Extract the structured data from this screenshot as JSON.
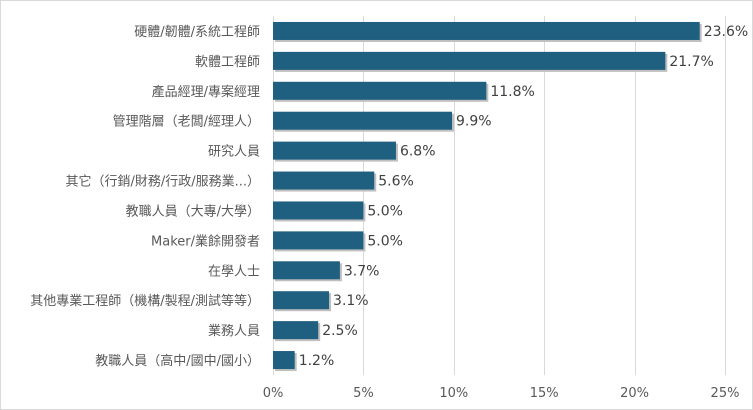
{
  "chart_data": {
    "type": "bar",
    "orientation": "horizontal",
    "categories": [
      "硬體/韌體/系統工程師",
      "軟體工程師",
      "產品經理/專案經理",
      "管理階層（老闆/經理人）",
      "研究人員",
      "其它（行銷/財務/行政/服務業...）",
      "教職人員（大專/大學）",
      "Maker/業餘開發者",
      "在學人士",
      "其他專業工程師（機構/製程/測試等等）",
      "業務人員",
      "教職人員（高中/國中/國小）"
    ],
    "values": [
      23.6,
      21.7,
      11.8,
      9.9,
      6.8,
      5.6,
      5.0,
      5.0,
      3.7,
      3.1,
      2.5,
      1.2
    ],
    "value_labels": [
      "23.6%",
      "21.7%",
      "11.8%",
      "9.9%",
      "6.8%",
      "5.6%",
      "5.0%",
      "5.0%",
      "3.7%",
      "3.1%",
      "2.5%",
      "1.2%"
    ],
    "xlim": [
      0,
      25
    ],
    "x_ticks": [
      0,
      5,
      10,
      15,
      20,
      25
    ],
    "x_tick_labels": [
      "0%",
      "5%",
      "10%",
      "15%",
      "20%",
      "25%"
    ],
    "grid": true,
    "bar_color": "#1f5f7f",
    "title": "",
    "xlabel": "",
    "ylabel": ""
  }
}
